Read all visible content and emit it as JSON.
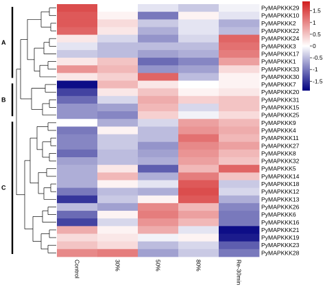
{
  "chart_data": {
    "type": "heatmap",
    "columns": [
      "Control",
      "30%",
      "50%",
      "80%",
      "Re-30min"
    ],
    "rows": [
      "PyMAPKKK29",
      "PyMAPKKK10",
      "PyMAPKKK2",
      "PyMAPKKK22",
      "PyMAPKKK24",
      "PyMAPKKK3",
      "PyMAPKKK17",
      "PyMAPKKK1",
      "PyMAPKKK33",
      "PyMAPKKK30",
      "PyMAPKKK7",
      "PyMAPKKK20",
      "PyMAPKKK31",
      "PyMAPKKK15",
      "PyMAPKKK25",
      "PyMAPKKK9",
      "PyMAPKKK4",
      "PyMAPKKK11",
      "PyMAPKKK27",
      "PyMAPKKK8",
      "PyMAPKKK32",
      "PyMAPKKK5",
      "PyMAPKKK14",
      "PyMAPKKK18",
      "PyMAPKKK12",
      "PyMAPKKK13",
      "PyMAPKKK26",
      "PyMAPKKK6",
      "PyMAPKKK16",
      "PyMAPKKK21",
      "PyMAPKKK19",
      "PyMAPKKK23",
      "PyMAPKKK28"
    ],
    "values": [
      [
        1.5,
        0.0,
        -0.2,
        -0.4,
        -0.1
      ],
      [
        1.4,
        0.1,
        -1.0,
        0.1,
        -0.2
      ],
      [
        1.4,
        0.3,
        -0.4,
        -0.2,
        -0.6
      ],
      [
        1.3,
        0.2,
        -0.6,
        -0.2,
        -0.5
      ],
      [
        0.2,
        -0.3,
        -0.8,
        -0.3,
        1.3
      ],
      [
        -0.2,
        -0.5,
        -0.5,
        -0.5,
        1.2
      ],
      [
        -0.4,
        -0.5,
        -0.7,
        -0.6,
        1.1
      ],
      [
        0.2,
        0.5,
        -1.1,
        -0.9,
        0.8
      ],
      [
        0.9,
        0.6,
        -0.8,
        -0.7,
        0.3
      ],
      [
        0.2,
        0.4,
        1.3,
        -0.5,
        0.1
      ],
      [
        -1.8,
        0.6,
        0.2,
        0.0,
        0.1
      ],
      [
        -1.4,
        0.2,
        0.5,
        0.1,
        0.2
      ],
      [
        -1.1,
        -0.3,
        0.7,
        0.4,
        0.5
      ],
      [
        -0.8,
        -0.7,
        0.6,
        -0.3,
        0.5
      ],
      [
        -0.8,
        -0.9,
        0.4,
        -0.1,
        0.3
      ],
      [
        0.0,
        -0.6,
        -0.3,
        0.8,
        0.6
      ],
      [
        -1.0,
        0.1,
        -0.5,
        0.9,
        0.7
      ],
      [
        -0.9,
        -0.4,
        -0.5,
        1.2,
        0.6
      ],
      [
        -0.9,
        -0.4,
        -0.8,
        1.0,
        0.8
      ],
      [
        -1.1,
        -0.5,
        -0.7,
        0.9,
        0.6
      ],
      [
        -0.7,
        -0.5,
        -0.6,
        0.8,
        0.5
      ],
      [
        -0.6,
        0.2,
        -1.2,
        0.6,
        1.3
      ],
      [
        -0.6,
        0.6,
        -0.6,
        1.1,
        0.5
      ],
      [
        -0.6,
        0.1,
        -0.2,
        1.4,
        -0.4
      ],
      [
        -1.0,
        -0.5,
        -0.6,
        1.5,
        -0.3
      ],
      [
        -1.5,
        -0.4,
        0.1,
        1.4,
        -0.6
      ],
      [
        -0.5,
        -0.7,
        1.0,
        0.6,
        -0.9
      ],
      [
        -1.1,
        0.1,
        1.1,
        0.8,
        -1.0
      ],
      [
        -1.4,
        -0.3,
        0.9,
        0.6,
        -1.0
      ],
      [
        0.7,
        0.1,
        0.7,
        -0.2,
        -1.8
      ],
      [
        0.3,
        0.2,
        -0.1,
        0.1,
        -1.7
      ],
      [
        0.5,
        0.3,
        -0.5,
        -0.3,
        -1.2
      ],
      [
        1.0,
        1.1,
        -0.7,
        -0.4,
        -1.0
      ]
    ],
    "groups": [
      {
        "label": "A",
        "rows": [
          0,
          9
        ]
      },
      {
        "label": "B",
        "rows": [
          10,
          14
        ]
      },
      {
        "label": "C",
        "rows": [
          15,
          32
        ]
      }
    ],
    "colorbar": {
      "ticks": [
        {
          "value": 1.5,
          "label": "1.5"
        },
        {
          "value": 1,
          "label": "1"
        },
        {
          "value": 0.5,
          "label": "0.5"
        },
        {
          "value": 0,
          "label": "0"
        },
        {
          "value": -0.5,
          "label": "-0.5"
        },
        {
          "value": -1,
          "label": "-1"
        },
        {
          "value": -1.5,
          "label": "-1.5"
        }
      ],
      "range": [
        -1.9,
        1.9
      ],
      "colors": {
        "low": "#000080",
        "mid": "#ffffff",
        "high": "#d21e1e"
      }
    }
  }
}
